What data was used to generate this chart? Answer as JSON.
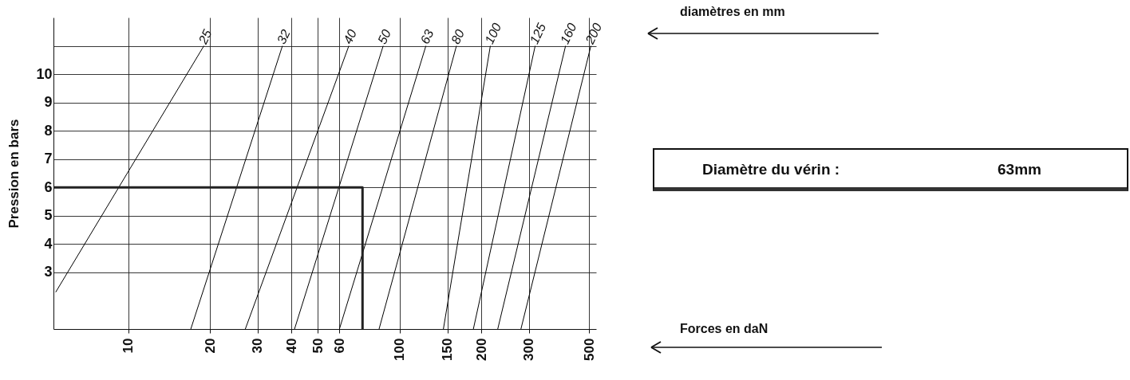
{
  "chart_data": {
    "type": "line",
    "ylabel": "Pression en bars",
    "annotations": [
      "diamètres en mm",
      "Forces en daN",
      "Diamètre du vérin :",
      "63mm"
    ],
    "log": "x",
    "grid": true,
    "legend": false,
    "xlim": [
      5.3,
      530
    ],
    "xticks": [
      10,
      20,
      30,
      40,
      50,
      60,
      100,
      150,
      200,
      300,
      500
    ],
    "ylim": [
      1,
      12
    ],
    "yticks": [
      {
        "value": 11,
        "label": null
      },
      10,
      9,
      8,
      7,
      6,
      5,
      4,
      3
    ],
    "series": [
      {
        "name": "25",
        "color": "#000000",
        "x": [
          5.4,
          19
        ],
        "values": [
          2.3,
          11
        ]
      },
      {
        "name": "32",
        "color": "#000000",
        "x": [
          17,
          37
        ],
        "values": [
          1,
          11
        ]
      },
      {
        "name": "40",
        "color": "#000000",
        "x": [
          27,
          65
        ],
        "values": [
          1,
          11
        ]
      },
      {
        "name": "50",
        "color": "#000000",
        "x": [
          41,
          87
        ],
        "values": [
          1,
          11
        ]
      },
      {
        "name": "63",
        "color": "#000000",
        "x": [
          60,
          125
        ],
        "values": [
          1,
          11
        ]
      },
      {
        "name": "80",
        "color": "#000000",
        "x": [
          84,
          162
        ],
        "values": [
          1,
          11
        ]
      },
      {
        "name": "100",
        "color": "#000000",
        "x": [
          145,
          216
        ],
        "values": [
          1,
          11
        ]
      },
      {
        "name": "125",
        "color": "#000000",
        "x": [
          187,
          316
        ],
        "values": [
          1,
          11
        ]
      },
      {
        "name": "160",
        "color": "#000000",
        "x": [
          230,
          409
        ],
        "values": [
          1,
          11
        ]
      },
      {
        "name": "200",
        "color": "#000000",
        "x": [
          280,
          507
        ],
        "values": [
          1,
          11
        ]
      },
      {
        "type": "line",
        "color": "#222222",
        "x": [
          5.3,
          73,
          73
        ],
        "values": [
          6,
          6,
          1
        ]
      }
    ]
  }
}
